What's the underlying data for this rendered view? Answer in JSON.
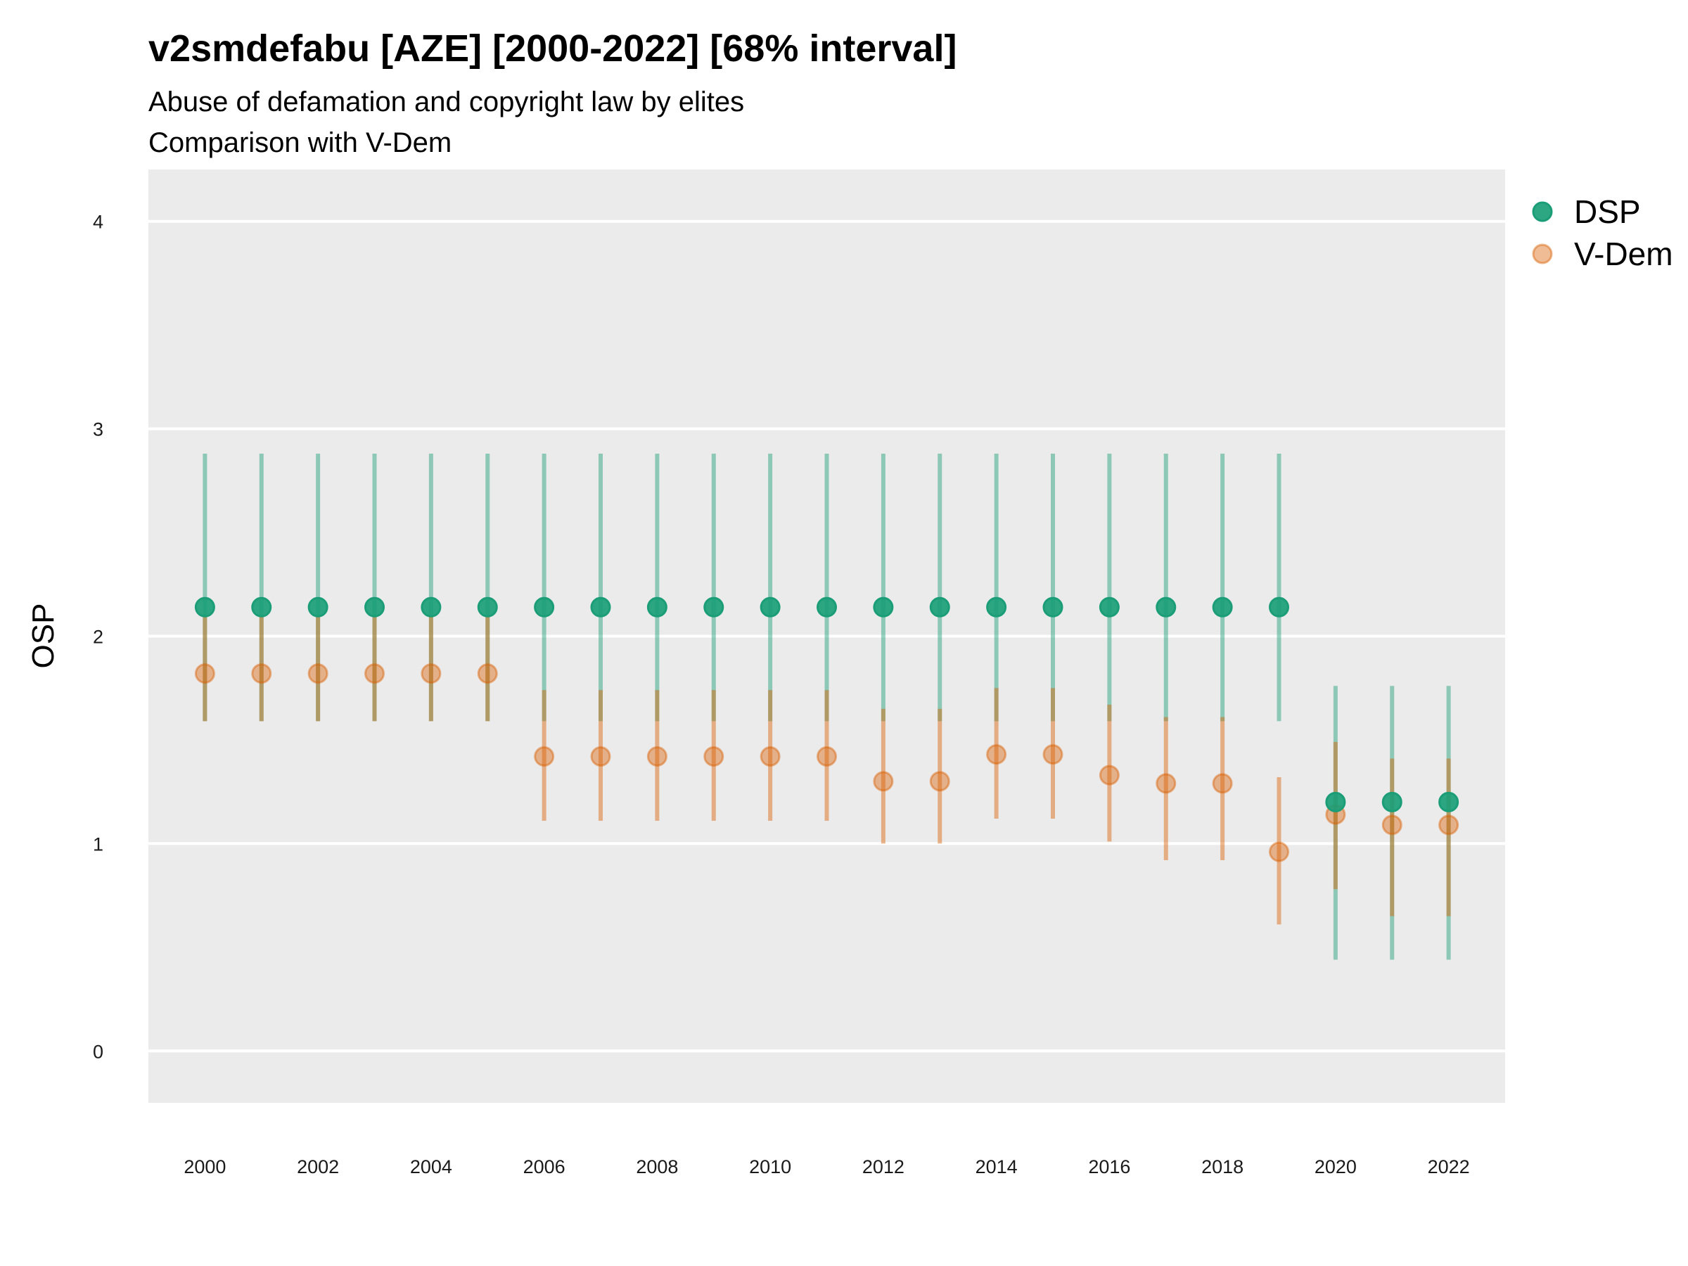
{
  "chart_data": {
    "type": "scatter",
    "title": "v2smdefabu [AZE] [2000-2022] [68% interval]",
    "subtitle_lines": [
      "Abuse of defamation and copyright law by elites",
      "Comparison with V-Dem"
    ],
    "xlabel": "",
    "ylabel": "OSP",
    "xlim": [
      1999,
      2023
    ],
    "ylim": [
      -0.25,
      4.25
    ],
    "x_ticks": [
      2000,
      2002,
      2004,
      2006,
      2008,
      2010,
      2012,
      2014,
      2016,
      2018,
      2020,
      2022
    ],
    "y_ticks": [
      0,
      1,
      2,
      3,
      4
    ],
    "grid": true,
    "legend_position": "right",
    "series": [
      {
        "name": "DSP",
        "color": "#1b9e77",
        "x": [
          2000,
          2001,
          2002,
          2003,
          2004,
          2005,
          2006,
          2007,
          2008,
          2009,
          2010,
          2011,
          2012,
          2013,
          2014,
          2015,
          2016,
          2017,
          2018,
          2019,
          2020,
          2021,
          2022
        ],
        "y": [
          2.14,
          2.14,
          2.14,
          2.14,
          2.14,
          2.14,
          2.14,
          2.14,
          2.14,
          2.14,
          2.14,
          2.14,
          2.14,
          2.14,
          2.14,
          2.14,
          2.14,
          2.14,
          2.14,
          2.14,
          1.2,
          1.2,
          1.2
        ],
        "lower": [
          1.59,
          1.59,
          1.59,
          1.59,
          1.59,
          1.59,
          1.59,
          1.59,
          1.59,
          1.59,
          1.59,
          1.59,
          1.59,
          1.59,
          1.59,
          1.59,
          1.59,
          1.59,
          1.59,
          1.59,
          0.44,
          0.44,
          0.44
        ],
        "upper": [
          2.88,
          2.88,
          2.88,
          2.88,
          2.88,
          2.88,
          2.88,
          2.88,
          2.88,
          2.88,
          2.88,
          2.88,
          2.88,
          2.88,
          2.88,
          2.88,
          2.88,
          2.88,
          2.88,
          2.88,
          1.76,
          1.76,
          1.76
        ]
      },
      {
        "name": "V-Dem",
        "color": "#d95f02",
        "x": [
          2000,
          2001,
          2002,
          2003,
          2004,
          2005,
          2006,
          2007,
          2008,
          2009,
          2010,
          2011,
          2012,
          2013,
          2014,
          2015,
          2016,
          2017,
          2018,
          2019,
          2020,
          2021,
          2022
        ],
        "y": [
          1.82,
          1.82,
          1.82,
          1.82,
          1.82,
          1.82,
          1.42,
          1.42,
          1.42,
          1.42,
          1.42,
          1.42,
          1.3,
          1.3,
          1.43,
          1.43,
          1.33,
          1.29,
          1.29,
          0.96,
          1.14,
          1.09,
          1.09
        ],
        "lower": [
          1.59,
          1.59,
          1.59,
          1.59,
          1.59,
          1.59,
          1.11,
          1.11,
          1.11,
          1.11,
          1.11,
          1.11,
          1.0,
          1.0,
          1.12,
          1.12,
          1.01,
          0.92,
          0.92,
          0.61,
          0.78,
          0.65,
          0.65
        ],
        "upper": [
          2.1,
          2.1,
          2.1,
          2.1,
          2.1,
          2.1,
          1.74,
          1.74,
          1.74,
          1.74,
          1.74,
          1.74,
          1.65,
          1.65,
          1.75,
          1.75,
          1.67,
          1.61,
          1.61,
          1.32,
          1.49,
          1.41,
          1.41
        ]
      }
    ]
  },
  "colors": {
    "panel_background": "#ebebeb",
    "gridline": "#ffffff"
  }
}
